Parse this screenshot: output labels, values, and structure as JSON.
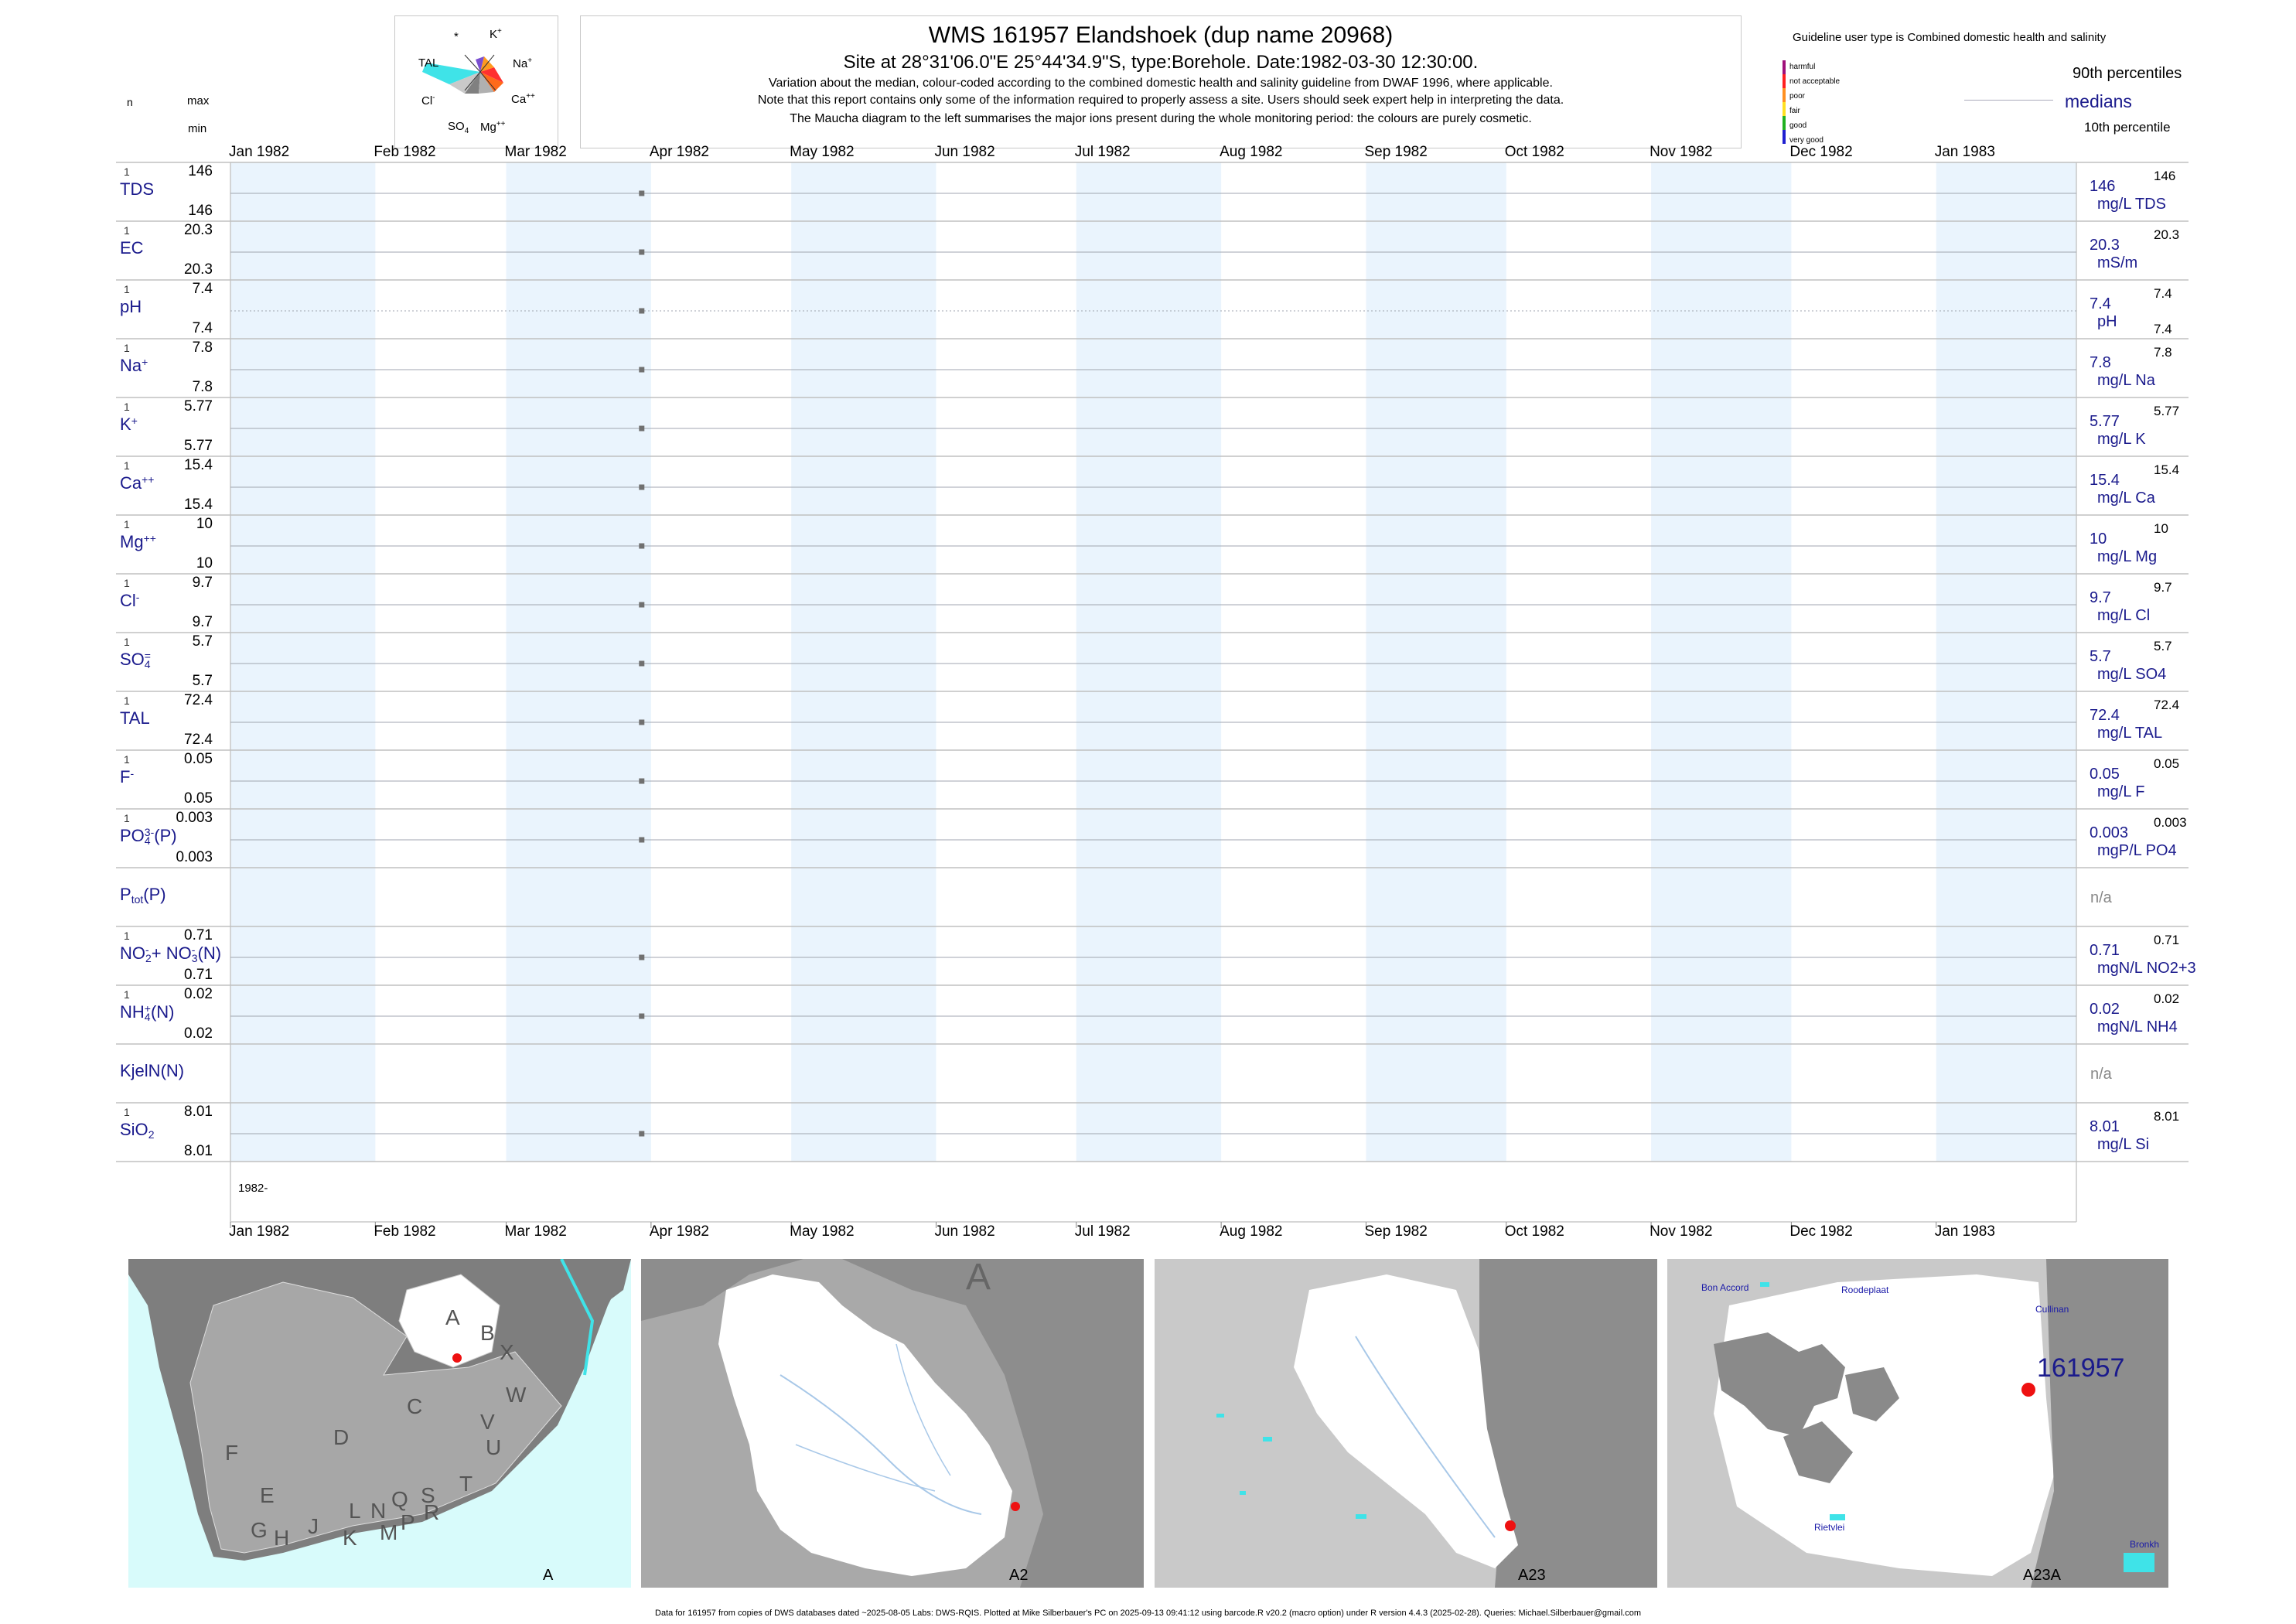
{
  "title": {
    "line1": "WMS 161957  Elandshoek (dup name 20968)",
    "line2": "Site at 28°31'06.0\"E 25°44'34.9\"S, type:Borehole. Date:1982-03-30 12:30:00.",
    "line3": "Variation about the median,  colour-coded according to the combined domestic health and salinity guideline from DWAF 1996, where applicable.",
    "line4": "Note that this report contains only some of the information required to properly assess a site. Users should seek expert help in interpreting the data.",
    "line5": "The Maucha diagram to the left summarises the major ions present during the whole monitoring period: the colours are purely cosmetic."
  },
  "maucha": {
    "ions": [
      "*",
      "K",
      "Na",
      "Ca",
      "Mg",
      "SO",
      "Cl",
      "TAL"
    ],
    "colors": {
      "na": "#ff3030",
      "k": "#ff9a1f",
      "ca": "#ff6a1a",
      "mg": "#b0b0b0",
      "so4": "#808080",
      "cl": "#c9c9c9",
      "tal": "#3fe3e8",
      "star": "#7a4fd0"
    }
  },
  "guideline": {
    "title": "Guideline user type is Combined domestic health and salinity",
    "classes": [
      "harmful",
      "not acceptable",
      "poor",
      "fair",
      "good",
      "very good"
    ],
    "colors": [
      "#a0107a",
      "#ff2020",
      "#ff9020",
      "#ffe020",
      "#20b020",
      "#2020d0"
    ],
    "p90": "90th percentiles",
    "medians": "medians",
    "p10": "10th percentile"
  },
  "left_header": {
    "n": "n",
    "max": "max",
    "min": "min"
  },
  "chart_data": {
    "type": "scatter",
    "x_range": [
      "1982-01-01",
      "1983-01-31"
    ],
    "month_labels": [
      "Jan 1982",
      "Feb 1982",
      "Mar 1982",
      "Apr 1982",
      "May 1982",
      "Jun 1982",
      "Jul 1982",
      "Aug 1982",
      "Sep 1982",
      "Oct 1982",
      "Nov 1982",
      "Dec 1982",
      "Jan 1983"
    ],
    "sample_date": "1982-03-30",
    "year_label": "1982-",
    "rows": [
      {
        "label": "TDS",
        "n": "1",
        "max": "146",
        "min": "146",
        "median": "146",
        "unit": "mg/L TDS",
        "p90": "146",
        "value": 146
      },
      {
        "label": "EC",
        "n": "1",
        "max": "20.3",
        "min": "20.3",
        "median": "20.3",
        "unit": "mS/m",
        "p90": "20.3",
        "value": 20.3
      },
      {
        "label": "pH",
        "n": "1",
        "max": "7.4",
        "min": "7.4",
        "median": "7.4",
        "unit": "pH",
        "p90": "7.4",
        "p10": "7.4",
        "value": 7.4
      },
      {
        "label": "Na",
        "sup": "+",
        "n": "1",
        "max": "7.8",
        "min": "7.8",
        "median": "7.8",
        "unit": "mg/L Na",
        "p90": "7.8",
        "value": 7.8
      },
      {
        "label": "K",
        "sup": "+",
        "n": "1",
        "max": "5.77",
        "min": "5.77",
        "median": "5.77",
        "unit": "mg/L K",
        "p90": "5.77",
        "value": 5.77
      },
      {
        "label": "Ca",
        "sup": "++",
        "n": "1",
        "max": "15.4",
        "min": "15.4",
        "median": "15.4",
        "unit": "mg/L Ca",
        "p90": "15.4",
        "value": 15.4
      },
      {
        "label": "Mg",
        "sup": "++",
        "n": "1",
        "max": "10",
        "min": "10",
        "median": "10",
        "unit": "mg/L Mg",
        "p90": "10",
        "value": 10
      },
      {
        "label": "Cl",
        "sup": "-",
        "n": "1",
        "max": "9.7",
        "min": "9.7",
        "median": "9.7",
        "unit": "mg/L Cl",
        "p90": "9.7",
        "value": 9.7
      },
      {
        "label": "SO",
        "sub": "4",
        "sup": "=",
        "n": "1",
        "max": "5.7",
        "min": "5.7",
        "median": "5.7",
        "unit": "mg/L SO4",
        "p90": "5.7",
        "value": 5.7
      },
      {
        "label": "TAL",
        "n": "1",
        "max": "72.4",
        "min": "72.4",
        "median": "72.4",
        "unit": "mg/L TAL",
        "p90": "72.4",
        "value": 72.4
      },
      {
        "label": "F",
        "sup": "-",
        "n": "1",
        "max": "0.05",
        "min": "0.05",
        "median": "0.05",
        "unit": "mg/L F",
        "p90": "0.05",
        "value": 0.05
      },
      {
        "label": "PO",
        "sub": "4",
        "sup": "3-",
        "after": "(P)",
        "n": "1",
        "max": "0.003",
        "min": "0.003",
        "median": "0.003",
        "unit": "mgP/L PO4",
        "p90": "0.003",
        "value": 0.003
      },
      {
        "label": "P",
        "sub": "tot",
        "after": "(P)",
        "na": "n/a"
      },
      {
        "label": "NO",
        "sub": "2",
        "sup": "-",
        "after": "+ NO",
        "sub2": "3",
        "sup2": "-",
        "after2": "(N)",
        "n": "1",
        "max": "0.71",
        "min": "0.71",
        "median": "0.71",
        "unit": "mgN/L NO2+3",
        "p90": "0.71",
        "value": 0.71
      },
      {
        "label": "NH",
        "sub": "4",
        "sup": "+",
        "after": "(N)",
        "n": "1",
        "max": "0.02",
        "min": "0.02",
        "median": "0.02",
        "unit": "mgN/L NH4",
        "p90": "0.02",
        "value": 0.02
      },
      {
        "label": "KjelN(N)",
        "na": "n/a"
      },
      {
        "label": "SiO",
        "sub": "2",
        "n": "1",
        "max": "8.01",
        "min": "8.01",
        "median": "8.01",
        "unit": "mg/L Si",
        "p90": "8.01",
        "value": 8.01
      }
    ]
  },
  "maps": [
    {
      "label": "A",
      "letters": [
        "A",
        "B",
        "X",
        "W",
        "C",
        "D",
        "V",
        "U",
        "T",
        "F",
        "E",
        "G",
        "H",
        "J",
        "K",
        "L",
        "M",
        "N",
        "P",
        "Q",
        "R",
        "S"
      ]
    },
    {
      "label": "A2",
      "letters": [
        "A"
      ]
    },
    {
      "label": "A23"
    },
    {
      "label": "A23A",
      "site": "161957",
      "places": [
        "Bon Accord",
        "Roodeplaat",
        "Cullinan",
        "Rietvlei",
        "Bronkh"
      ]
    }
  ],
  "footer": "Data for 161957 from copies of DWS databases dated ~2025-08-05 Labs: DWS-RQIS. Plotted at Mike Silberbauer's PC on 2025-09-13 09:41:12 using barcode.R v20.2 (macro option) under R version 4.4.3 (2025-02-28). Queries: Michael.Silberbauer@gmail.com"
}
